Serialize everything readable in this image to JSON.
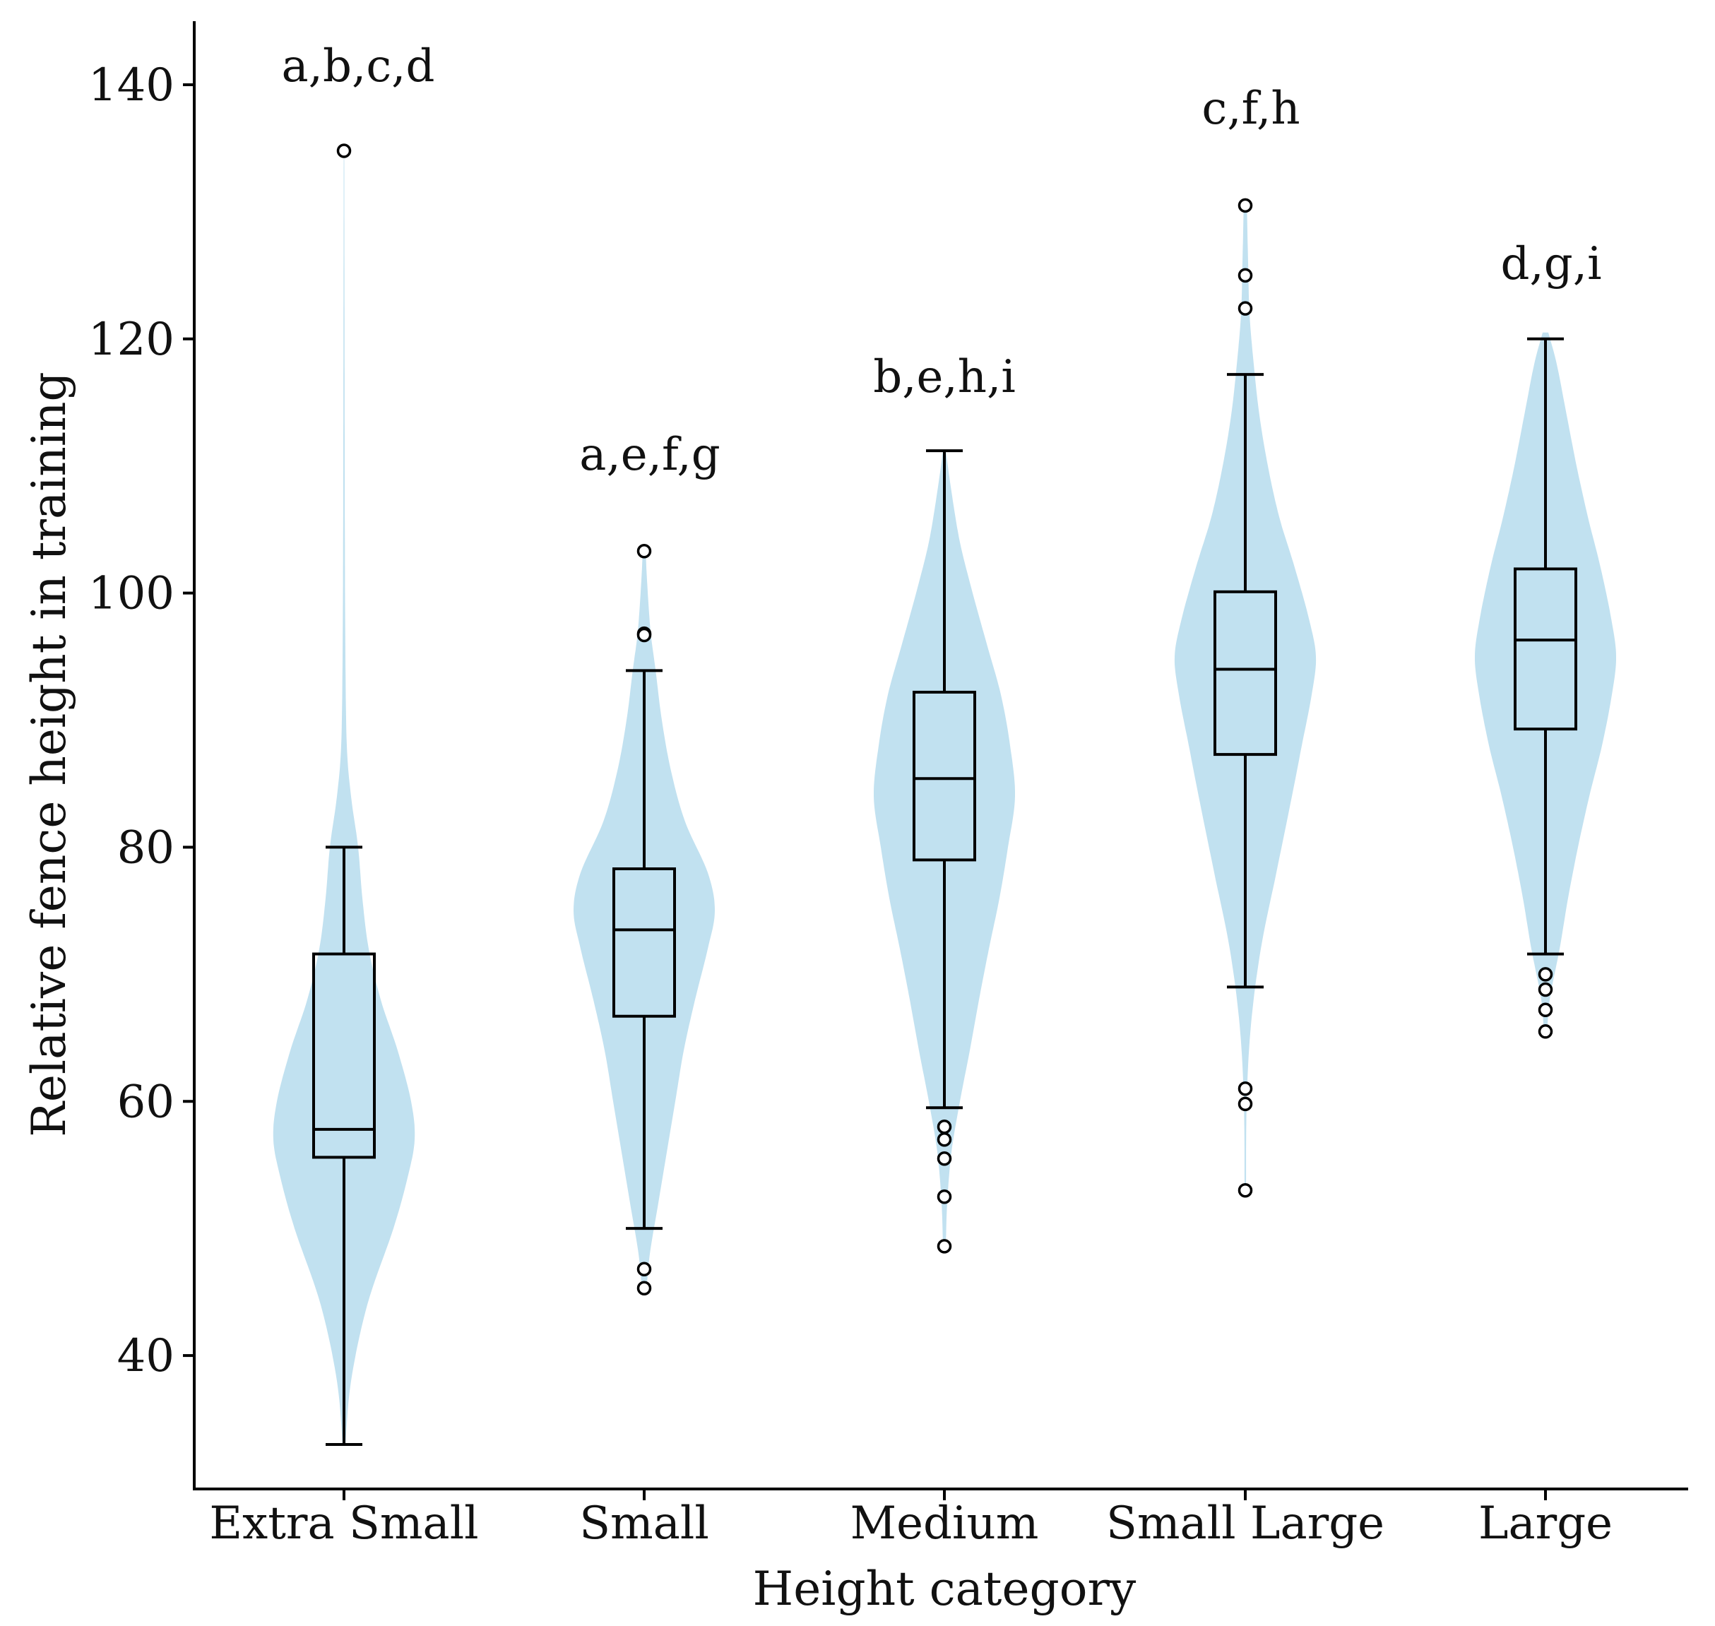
{
  "chart_data": {
    "type": "violin",
    "title": "",
    "xlabel": "Height category",
    "ylabel": "Relative fence height in training",
    "ylim": [
      29.5,
      145
    ],
    "yticks": [
      40,
      60,
      80,
      100,
      120,
      140
    ],
    "grid": false,
    "categories": [
      "Extra Small",
      "Small",
      "Medium",
      "Small Large",
      "Large"
    ],
    "significance_labels": [
      "a,b,c,d",
      "a,e,f,g",
      "b,e,h,i",
      "c,f,h",
      "d,g,i"
    ],
    "colors": {
      "violin": "#c1e1f0",
      "box": "#000000",
      "axis": "#000000"
    },
    "boxes": [
      {
        "category": "Extra Small",
        "whisker_low": 33,
        "q1": 55.6,
        "median": 57.8,
        "q3": 71.6,
        "whisker_high": 80,
        "outliers": [
          134.8
        ]
      },
      {
        "category": "Small",
        "whisker_low": 50,
        "q1": 66.7,
        "median": 73.5,
        "q3": 78.3,
        "whisker_high": 93.9,
        "outliers": [
          103.3,
          96.8,
          96.7,
          46.8,
          45.3
        ]
      },
      {
        "category": "Medium",
        "whisker_low": 59.5,
        "q1": 79,
        "median": 85.4,
        "q3": 92.2,
        "whisker_high": 111.2,
        "outliers": [
          58,
          57,
          55.5,
          52.5,
          48.6
        ]
      },
      {
        "category": "Small Large",
        "whisker_low": 69,
        "q1": 87.3,
        "median": 94,
        "q3": 100.1,
        "whisker_high": 117.2,
        "outliers": [
          130.5,
          125,
          122.4,
          61,
          59.8,
          53
        ]
      },
      {
        "category": "Large",
        "whisker_low": 71.6,
        "q1": 89.3,
        "median": 96.3,
        "q3": 101.9,
        "whisker_high": 120,
        "outliers": [
          70,
          68.8,
          67.2,
          65.5
        ]
      }
    ],
    "violins": [
      {
        "category": "Extra Small",
        "profile": [
          [
            33,
            0.02
          ],
          [
            38,
            0.1
          ],
          [
            44,
            0.33
          ],
          [
            50,
            0.7
          ],
          [
            54,
            0.9
          ],
          [
            57,
            1.0
          ],
          [
            60,
            0.95
          ],
          [
            64,
            0.76
          ],
          [
            68,
            0.52
          ],
          [
            72,
            0.35
          ],
          [
            76,
            0.26
          ],
          [
            80,
            0.2
          ],
          [
            84,
            0.1
          ],
          [
            88,
            0.04
          ],
          [
            95,
            0.02
          ],
          [
            105,
            0.012
          ],
          [
            120,
            0.008
          ],
          [
            135,
            0.004
          ]
        ]
      },
      {
        "category": "Small",
        "profile": [
          [
            45,
            0.03
          ],
          [
            48,
            0.08
          ],
          [
            52,
            0.2
          ],
          [
            56,
            0.32
          ],
          [
            60,
            0.44
          ],
          [
            64,
            0.56
          ],
          [
            68,
            0.72
          ],
          [
            72,
            0.9
          ],
          [
            75,
            1.0
          ],
          [
            78,
            0.9
          ],
          [
            82,
            0.58
          ],
          [
            86,
            0.38
          ],
          [
            90,
            0.25
          ],
          [
            94,
            0.16
          ],
          [
            97,
            0.09
          ],
          [
            101,
            0.04
          ],
          [
            103.5,
            0.02
          ]
        ]
      },
      {
        "category": "Medium",
        "profile": [
          [
            48.5,
            0.02
          ],
          [
            52,
            0.04
          ],
          [
            56,
            0.1
          ],
          [
            60,
            0.22
          ],
          [
            64,
            0.36
          ],
          [
            68,
            0.49
          ],
          [
            72,
            0.63
          ],
          [
            76,
            0.78
          ],
          [
            80,
            0.9
          ],
          [
            84,
            1.0
          ],
          [
            88,
            0.93
          ],
          [
            92,
            0.8
          ],
          [
            96,
            0.6
          ],
          [
            100,
            0.4
          ],
          [
            104,
            0.22
          ],
          [
            108,
            0.1
          ],
          [
            111.2,
            0.02
          ]
        ]
      },
      {
        "category": "Small Large",
        "profile": [
          [
            53,
            0.01
          ],
          [
            60,
            0.02
          ],
          [
            66,
            0.08
          ],
          [
            72,
            0.22
          ],
          [
            78,
            0.44
          ],
          [
            84,
            0.66
          ],
          [
            88,
            0.8
          ],
          [
            92,
            0.94
          ],
          [
            95,
            1.0
          ],
          [
            98,
            0.9
          ],
          [
            102,
            0.7
          ],
          [
            106,
            0.48
          ],
          [
            110,
            0.32
          ],
          [
            114,
            0.2
          ],
          [
            118,
            0.12
          ],
          [
            122,
            0.06
          ],
          [
            126,
            0.04
          ],
          [
            131,
            0.02
          ]
        ]
      },
      {
        "category": "Large",
        "profile": [
          [
            65,
            0.02
          ],
          [
            68,
            0.06
          ],
          [
            72,
            0.2
          ],
          [
            76,
            0.32
          ],
          [
            80,
            0.46
          ],
          [
            84,
            0.62
          ],
          [
            88,
            0.8
          ],
          [
            92,
            0.94
          ],
          [
            95,
            1.0
          ],
          [
            98,
            0.93
          ],
          [
            102,
            0.78
          ],
          [
            106,
            0.6
          ],
          [
            110,
            0.44
          ],
          [
            114,
            0.3
          ],
          [
            118,
            0.16
          ],
          [
            120.5,
            0.04
          ]
        ]
      }
    ]
  }
}
